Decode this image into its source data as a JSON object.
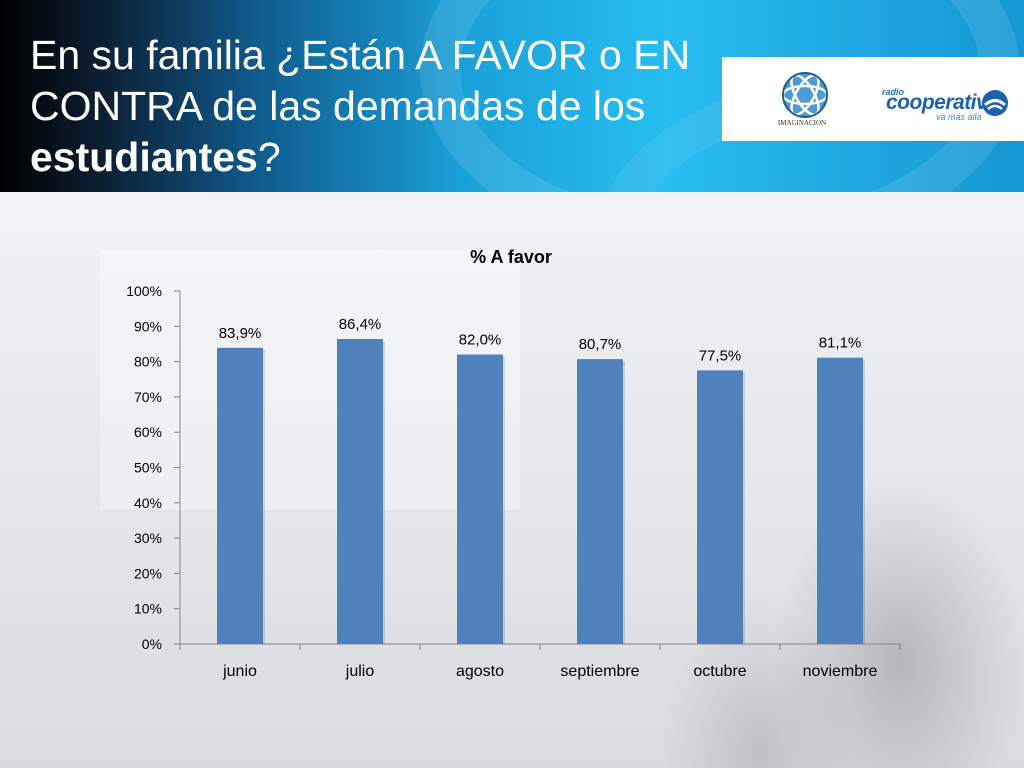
{
  "slide": {
    "title_prefix": "En su familia ¿Están A FAVOR o EN CONTRA de las demandas de los ",
    "title_bold": "estudiantes",
    "title_suffix": "?"
  },
  "logos": {
    "imaginacion": "IMAGINACION",
    "cooperativa_radio": "radio",
    "cooperativa_name": "cooperativa",
    "cooperativa_tagline": "va más allá"
  },
  "colors": {
    "bar": "#4f81bd",
    "axis": "#868686"
  },
  "chart_data": {
    "type": "bar",
    "title": "% A favor",
    "categories": [
      "junio",
      "julio",
      "agosto",
      "septiembre",
      "octubre",
      "noviembre"
    ],
    "values": [
      83.9,
      86.4,
      82.0,
      80.7,
      77.5,
      81.1
    ],
    "data_labels": [
      "83,9%",
      "86,4%",
      "82,0%",
      "80,7%",
      "77,5%",
      "81,1%"
    ],
    "ylim": [
      0,
      100
    ],
    "yticks": [
      0,
      10,
      20,
      30,
      40,
      50,
      60,
      70,
      80,
      90,
      100
    ],
    "ytick_labels": [
      "0%",
      "10%",
      "20%",
      "30%",
      "40%",
      "50%",
      "60%",
      "70%",
      "80%",
      "90%",
      "100%"
    ],
    "grid": false,
    "legend": "none"
  }
}
